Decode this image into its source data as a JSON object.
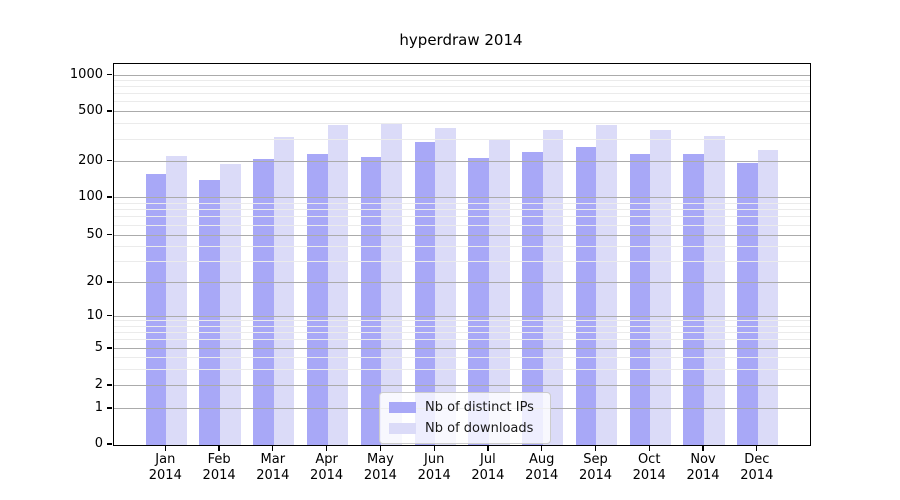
{
  "chart_data": {
    "type": "bar",
    "title": "hyperdraw 2014",
    "categories": [
      "Jan",
      "Feb",
      "Mar",
      "Apr",
      "May",
      "Jun",
      "Jul",
      "Aug",
      "Sep",
      "Oct",
      "Nov",
      "Dec"
    ],
    "category_year": "2014",
    "series": [
      {
        "name": "Nb of distinct IPs",
        "color": "#a8a8f7",
        "values": [
          158,
          140,
          208,
          231,
          219,
          286,
          212,
          238,
          262,
          229,
          232,
          193
        ]
      },
      {
        "name": "Nb of downloads",
        "color": "#dbdbf8",
        "values": [
          221,
          191,
          318,
          396,
          407,
          372,
          299,
          362,
          396,
          358,
          323,
          246
        ]
      }
    ],
    "yscale": "symlog",
    "yticks": [
      0,
      1,
      2,
      5,
      10,
      20,
      50,
      100,
      200,
      500,
      1000
    ],
    "ylim": [
      0,
      1300
    ],
    "grid": "on",
    "legend_position": "lower center",
    "colors": {
      "major_grid": "#ababab",
      "minor_grid": "#ebebeb",
      "spine": "#000000",
      "background": "#ffffff"
    }
  }
}
